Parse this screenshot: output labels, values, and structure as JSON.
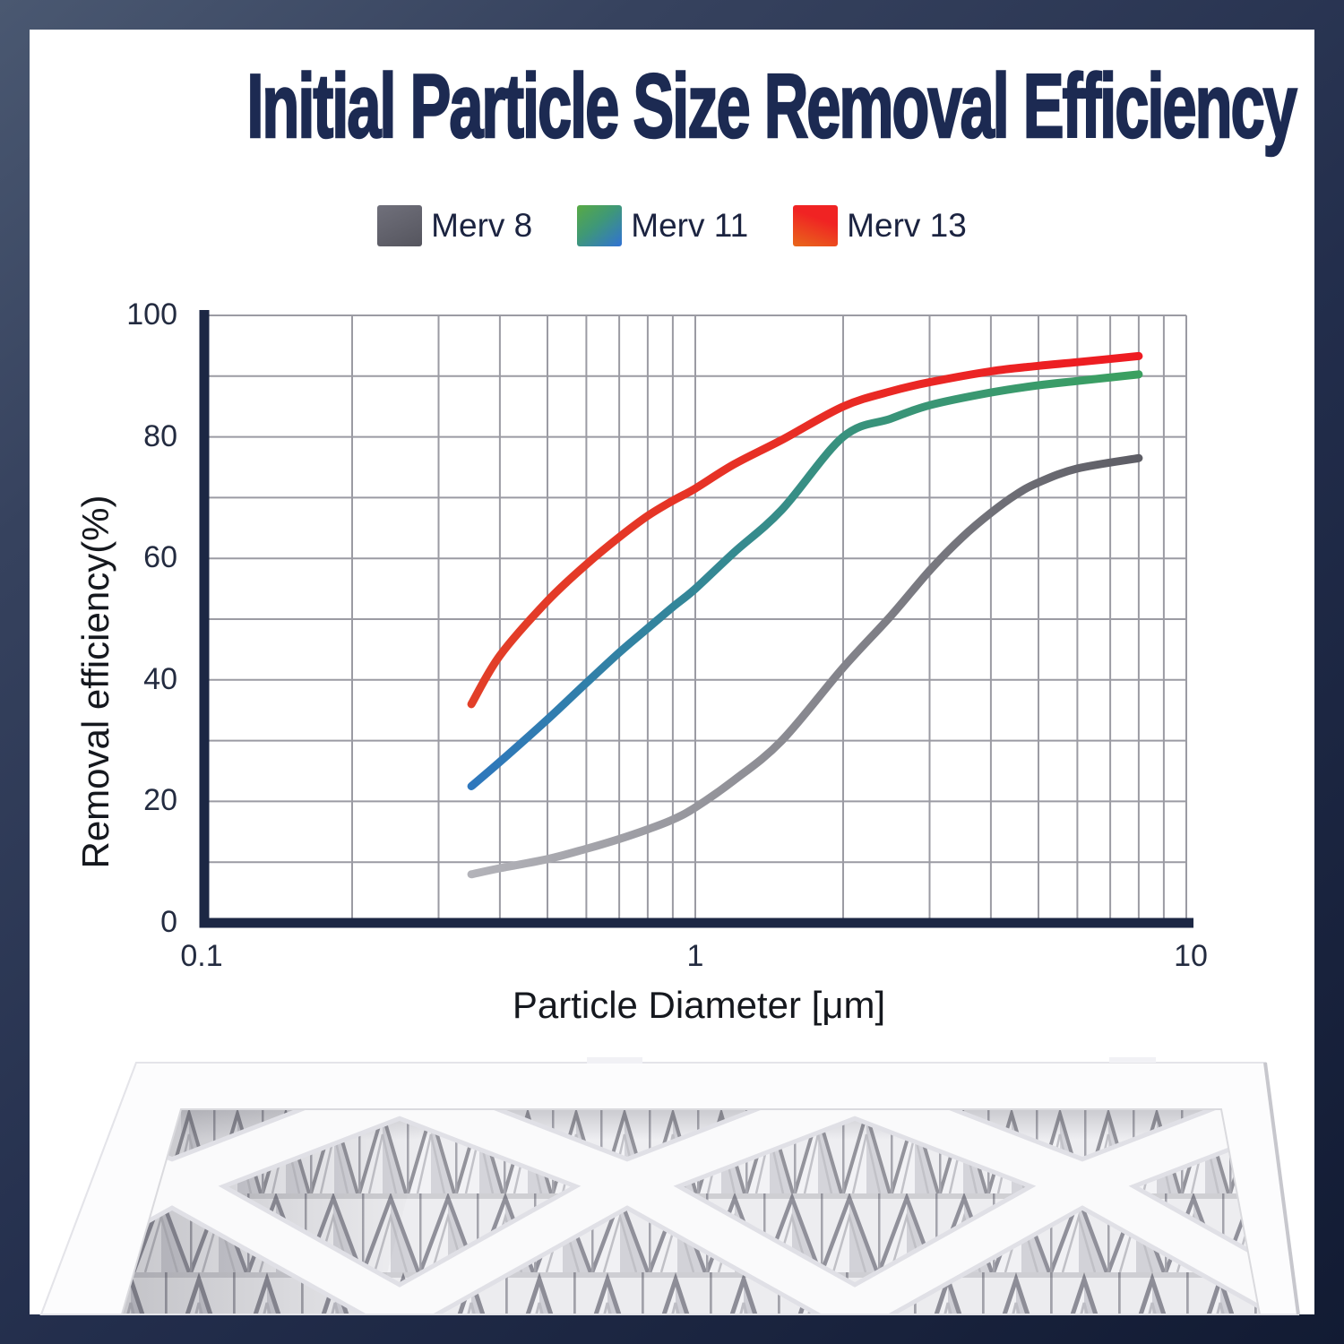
{
  "title": "Initial Particle Size Removal Efficiency",
  "legend": {
    "items": [
      {
        "label": "Merv 8",
        "swatch_css": "background:linear-gradient(155deg,#70707b 0%,#55555e 100%)"
      },
      {
        "label": "Merv 11",
        "swatch_css": "background:linear-gradient(140deg,#58aa44 0%,#3f9877 45%,#3172d4 100%)"
      },
      {
        "label": "Merv 13",
        "swatch_css": "background:linear-gradient(200deg,#f02323 35%,#e8681b 100%)"
      }
    ]
  },
  "chart_data": {
    "type": "line",
    "title": "",
    "xlabel": "Particle Diameter [μm]",
    "ylabel": "Removal efficiency(%)",
    "x_scale": "log",
    "xlim": [
      0.1,
      10
    ],
    "ylim": [
      0,
      100
    ],
    "grid": true,
    "legend_position": "top-center",
    "xtick_labels": [
      "0.1",
      "1",
      "10"
    ],
    "ytick_labels_top_to_bottom": [
      "100",
      "80",
      "60",
      "40",
      "20",
      "0"
    ],
    "grid_x": [
      0.2,
      0.3,
      0.4,
      0.5,
      0.6,
      0.7,
      0.8,
      0.9,
      1,
      2,
      3,
      4,
      5,
      6,
      7,
      8,
      9,
      10
    ],
    "grid_y": [
      10,
      20,
      30,
      40,
      50,
      60,
      70,
      80,
      90,
      100
    ],
    "grid_color": "#9b9ba3",
    "axis_color": "#1c2744",
    "series": [
      {
        "name": "Merv 8",
        "color_start": "#b3b3b9",
        "color_end": "#5d5d65",
        "x": [
          0.35,
          0.4,
          0.5,
          0.6,
          0.7,
          0.8,
          0.9,
          1.0,
          1.2,
          1.5,
          2.0,
          2.5,
          3.0,
          3.5,
          4.0,
          4.5,
          5.0,
          6.0,
          8.0
        ],
        "y": [
          8,
          9,
          10.5,
          12.2,
          13.8,
          15.4,
          17,
          19,
          23.5,
          30,
          42,
          50.5,
          58,
          63.5,
          67.5,
          70.5,
          72.5,
          74.8,
          76.5
        ]
      },
      {
        "name": "Merv 11",
        "color_start": "#2e77bd",
        "color_mid": "#38917e",
        "color_end": "#3ba060",
        "x": [
          0.35,
          0.4,
          0.5,
          0.6,
          0.7,
          0.8,
          0.9,
          1.0,
          1.2,
          1.5,
          2.0,
          2.5,
          3.0,
          4.0,
          5.0,
          6.0,
          8.0
        ],
        "y": [
          22.5,
          26.5,
          33.5,
          39.5,
          44.5,
          48.5,
          52,
          55,
          61,
          68,
          80,
          83,
          85.2,
          87.3,
          88.5,
          89.2,
          90.3
        ]
      },
      {
        "name": "Merv 13",
        "color_start": "#e23f28",
        "color_end": "#ee1b22",
        "x": [
          0.35,
          0.4,
          0.5,
          0.6,
          0.7,
          0.8,
          0.9,
          1.0,
          1.2,
          1.5,
          2.0,
          2.5,
          3.0,
          4.0,
          5.0,
          6.0,
          8.0
        ],
        "y": [
          36,
          44,
          53,
          59,
          63.5,
          67,
          69.5,
          71.5,
          75.5,
          79.5,
          85,
          87.5,
          89,
          90.8,
          91.7,
          92.3,
          93.3
        ]
      }
    ]
  },
  "filter_illustration": {
    "alt": "pleated air filter in perspective with white diamond lattice frame"
  }
}
